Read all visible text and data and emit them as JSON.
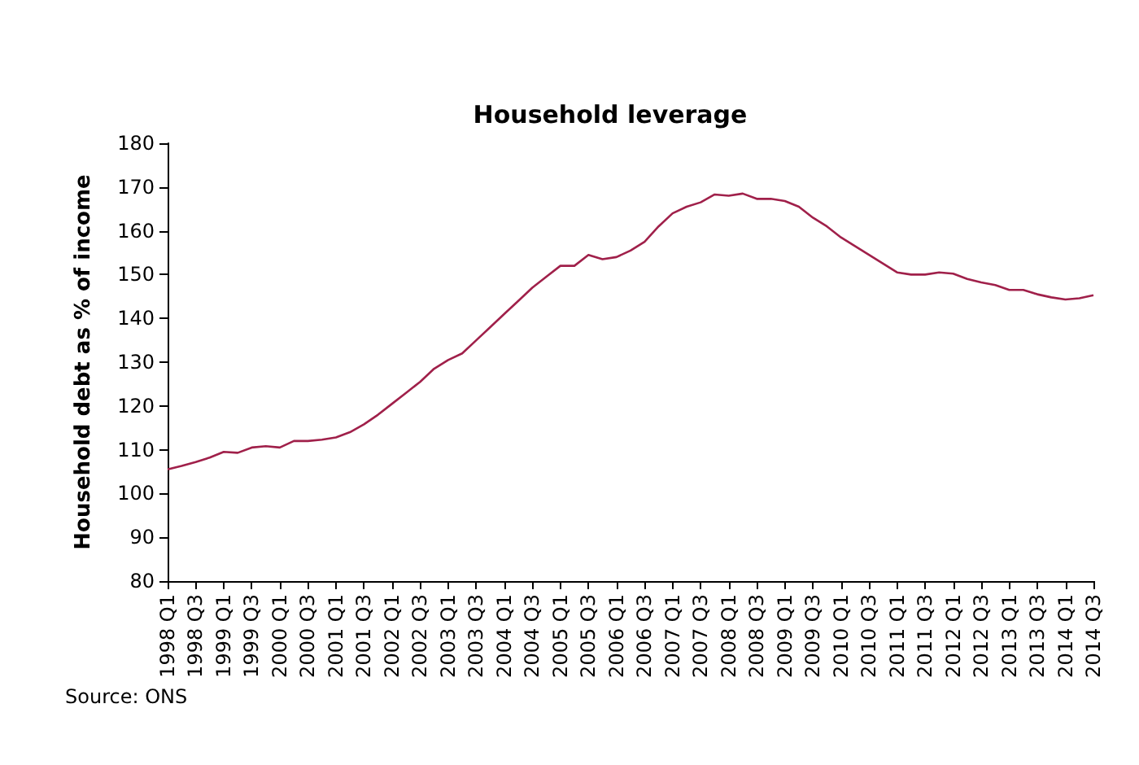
{
  "chart_data": {
    "type": "line",
    "title": "Household leverage",
    "ylabel": "Household debt as % of income",
    "categories": [
      "1998 Q1",
      null,
      "1998 Q3",
      null,
      "1999 Q1",
      null,
      "1999 Q3",
      null,
      "2000 Q1",
      null,
      "2000 Q3",
      null,
      "2001 Q1",
      null,
      "2001 Q3",
      null,
      "2002 Q1",
      null,
      "2002 Q3",
      null,
      "2003 Q1",
      null,
      "2003 Q3",
      null,
      "2004 Q1",
      null,
      "2004 Q3",
      null,
      "2005 Q1",
      null,
      "2005 Q3",
      null,
      "2006 Q1",
      null,
      "2006 Q3",
      null,
      "2007 Q1",
      null,
      "2007 Q3",
      null,
      "2008 Q1",
      null,
      "2008 Q3",
      null,
      "2009 Q1",
      null,
      "2009 Q3",
      null,
      "2010 Q1",
      null,
      "2010 Q3",
      null,
      "2011 Q1",
      null,
      "2011 Q3",
      null,
      "2012 Q1",
      null,
      "2012 Q3",
      null,
      "2013 Q1",
      null,
      "2013 Q3",
      null,
      "2014 Q1",
      null,
      "2014 Q3"
    ],
    "values": [
      105.5,
      106.3,
      107.2,
      108.2,
      109.5,
      109.3,
      110.5,
      110.8,
      110.5,
      112,
      112,
      112.3,
      112.8,
      114,
      115.8,
      118,
      120.5,
      123,
      125.5,
      128.5,
      130.5,
      132,
      135,
      138,
      141,
      144,
      147,
      149.5,
      152,
      152,
      154.5,
      153.5,
      154,
      155.5,
      157.5,
      161,
      164,
      165.5,
      166.5,
      168.3,
      168,
      168.5,
      167.3,
      167.3,
      166.8,
      165.5,
      163,
      161,
      158.5,
      156.5,
      154.5,
      152.5,
      150.5,
      150,
      150,
      150.5,
      150.2,
      149,
      148.2,
      147.6,
      146.5,
      146.5,
      145.5,
      144.8,
      144.3,
      144.6,
      145.3
    ],
    "color": "#a0204a",
    "ylim": [
      80,
      180
    ],
    "yticks": [
      80,
      90,
      100,
      110,
      120,
      130,
      140,
      150,
      160,
      170,
      180
    ],
    "grid": false,
    "marker": "none",
    "line_style": "solid",
    "annotations": [
      "Source: ONS"
    ]
  }
}
